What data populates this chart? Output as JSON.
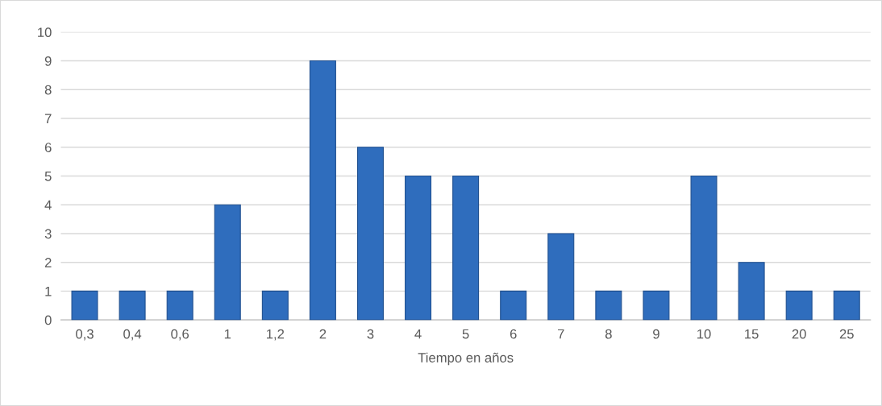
{
  "chart_data": {
    "type": "bar",
    "xlabel": "Tiempo en años",
    "categories": [
      "0,3",
      "0,4",
      "0,6",
      "1",
      "1,2",
      "2",
      "3",
      "4",
      "5",
      "6",
      "7",
      "8",
      "9",
      "10",
      "15",
      "20",
      "25"
    ],
    "values": [
      1,
      1,
      1,
      4,
      1,
      9,
      6,
      5,
      5,
      1,
      3,
      1,
      1,
      5,
      2,
      1,
      1
    ],
    "color": "#2f6dbd",
    "ylim": [
      0,
      10
    ],
    "yticks": [
      0,
      1,
      2,
      3,
      4,
      5,
      6,
      7,
      8,
      9,
      10
    ],
    "grid": "y"
  }
}
